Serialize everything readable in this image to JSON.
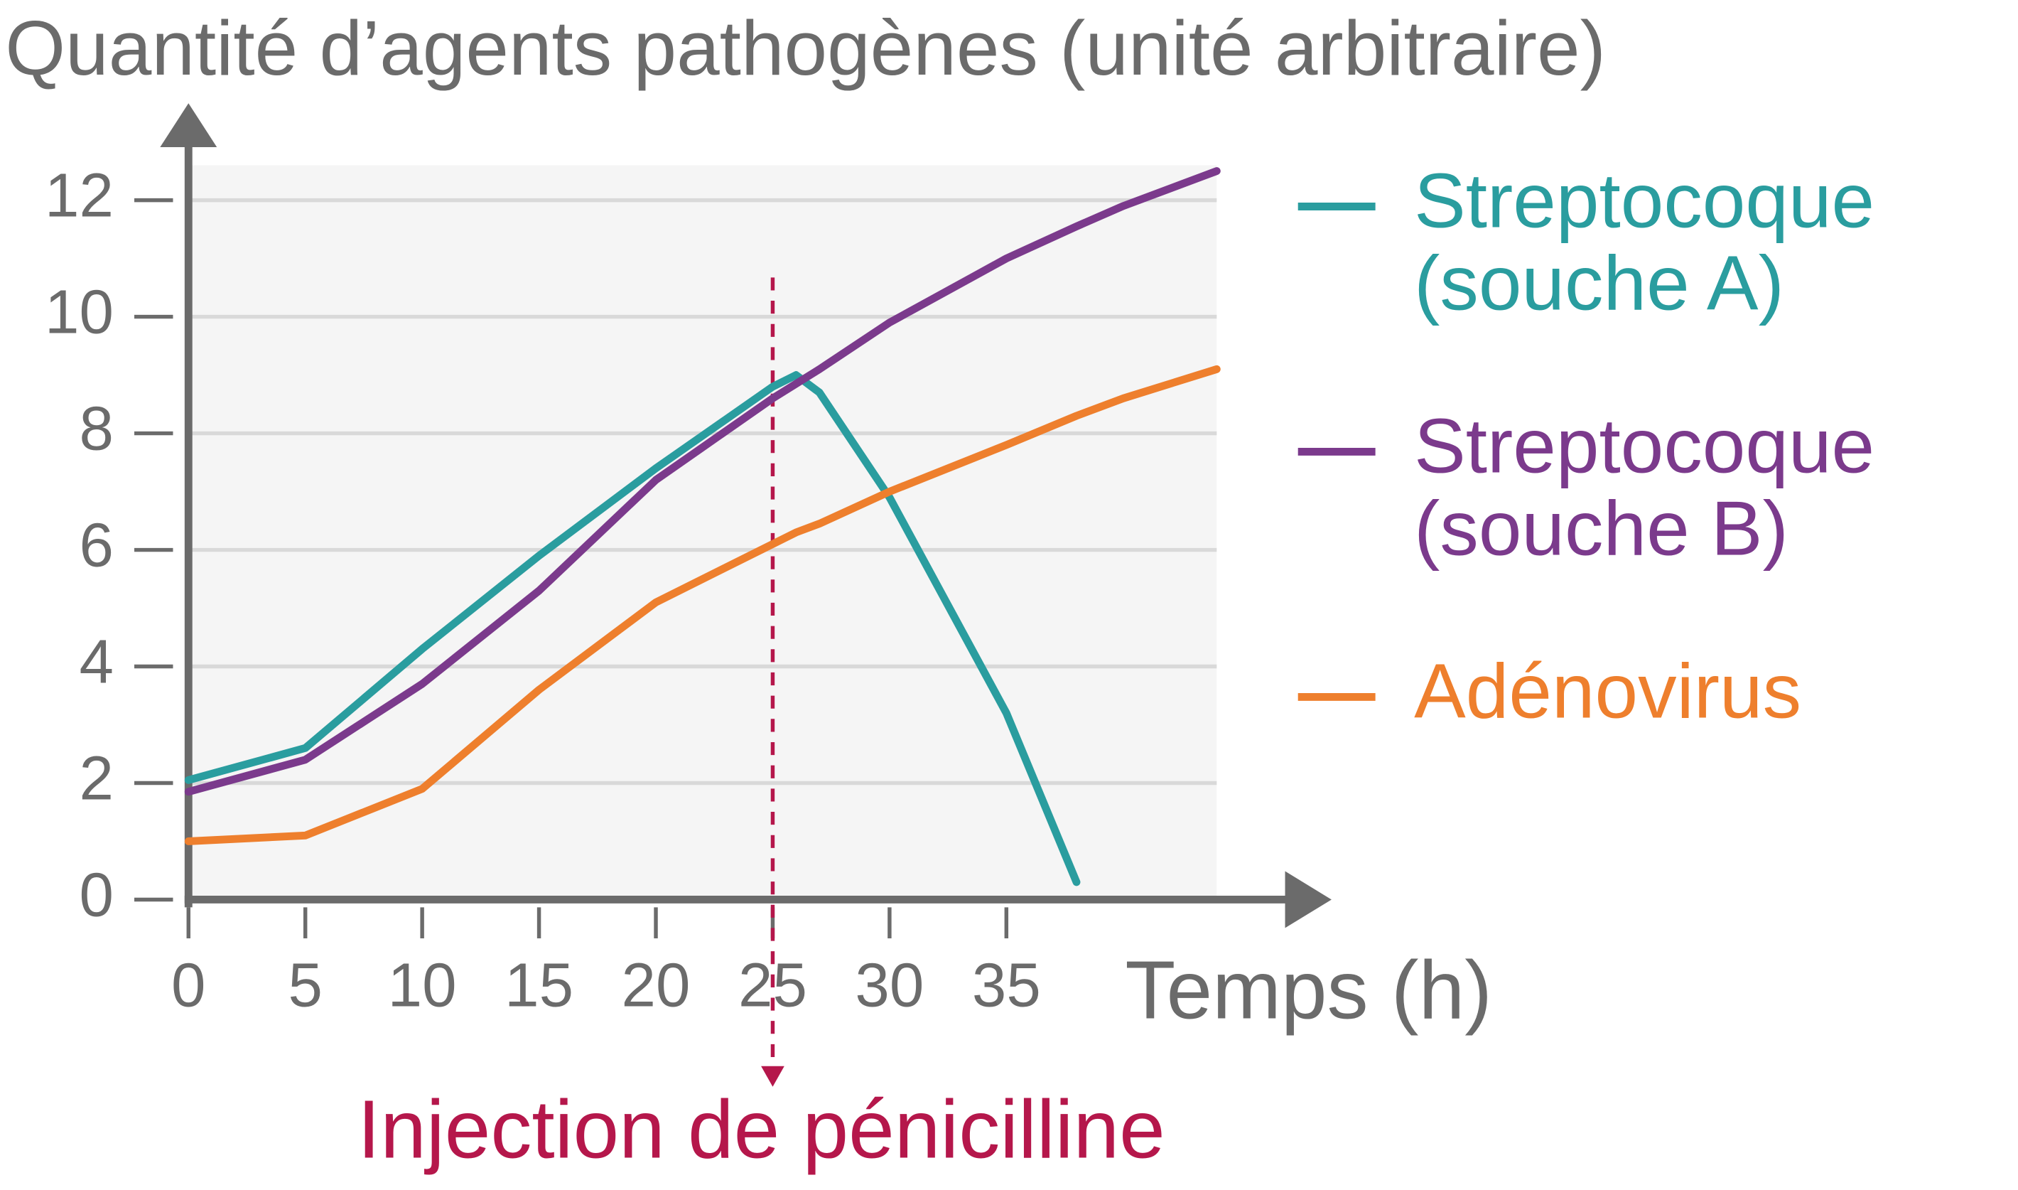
{
  "chart_data": {
    "type": "line",
    "y_axis_title": "Quantité d’agents pathogènes (unité arbitraire)",
    "x_axis_title": "Temps (h)",
    "x": [
      0,
      5,
      10,
      15,
      20,
      25,
      26,
      27,
      30,
      35,
      38,
      40,
      44
    ],
    "series": [
      {
        "name": "Streptocoque (souche A)",
        "color": "#2a9d9f",
        "values": [
          2.05,
          2.6,
          4.3,
          5.9,
          7.4,
          8.8,
          9.0,
          8.7,
          6.9,
          3.2,
          0.3,
          null,
          null
        ]
      },
      {
        "name": "Streptocoque (souche B)",
        "color": "#7b3a8c",
        "values": [
          1.85,
          2.4,
          3.7,
          5.3,
          7.2,
          8.6,
          8.85,
          9.1,
          9.9,
          11.0,
          11.55,
          11.9,
          12.5
        ]
      },
      {
        "name": "Adénovirus",
        "color": "#ee7f2d",
        "values": [
          1.0,
          1.1,
          1.9,
          3.6,
          5.1,
          6.1,
          6.3,
          6.45,
          7.0,
          7.8,
          8.3,
          8.6,
          9.1
        ]
      }
    ],
    "xlim": [
      0,
      44
    ],
    "ylim": [
      0,
      12.6
    ],
    "xticks": [
      0,
      5,
      10,
      15,
      20,
      25,
      30,
      35
    ],
    "yticks": [
      0,
      2,
      4,
      6,
      8,
      10,
      12
    ],
    "grid": true,
    "annotation": {
      "text": "Injection de pénicilline",
      "x": 25,
      "color": "#b5174b"
    }
  }
}
